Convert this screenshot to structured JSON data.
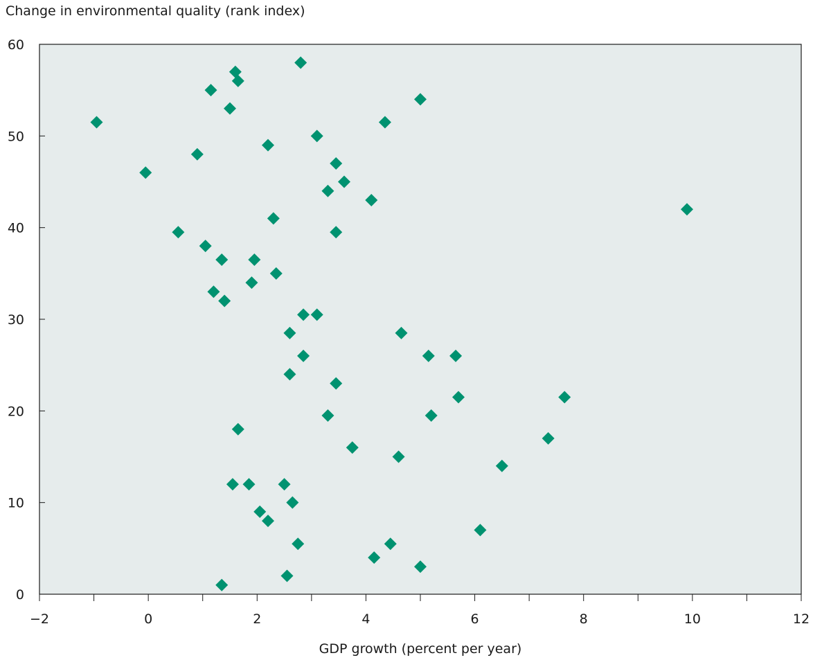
{
  "chart_data": {
    "type": "scatter",
    "title": "",
    "ylabel": "Change in environmental quality (rank index)",
    "xlabel": "GDP growth (percent per year)",
    "xlim": [
      -2,
      12
    ],
    "ylim": [
      0,
      60
    ],
    "x_ticks": [
      "−2",
      "0",
      "2",
      "4",
      "6",
      "8",
      "10",
      "12"
    ],
    "y_ticks": [
      "0",
      "10",
      "20",
      "30",
      "40",
      "50",
      "60"
    ],
    "grid": false,
    "colors": {
      "marker": "#009270",
      "plot_bg": "#e6ecec",
      "axis": "#1a1a1a"
    },
    "series": [
      {
        "points": [
          [
            -0.95,
            51.5
          ],
          [
            -0.05,
            46
          ],
          [
            0.55,
            39.5
          ],
          [
            0.9,
            48
          ],
          [
            1.05,
            38
          ],
          [
            1.15,
            55
          ],
          [
            1.2,
            33
          ],
          [
            1.35,
            36.5
          ],
          [
            1.4,
            32
          ],
          [
            1.5,
            53
          ],
          [
            1.55,
            12
          ],
          [
            1.6,
            57
          ],
          [
            1.65,
            56
          ],
          [
            1.65,
            18
          ],
          [
            1.35,
            1
          ],
          [
            1.85,
            12
          ],
          [
            1.9,
            34
          ],
          [
            1.95,
            36.5
          ],
          [
            2.05,
            9
          ],
          [
            2.2,
            49
          ],
          [
            2.2,
            8
          ],
          [
            2.3,
            41
          ],
          [
            2.35,
            35
          ],
          [
            2.5,
            12
          ],
          [
            2.55,
            2
          ],
          [
            2.6,
            28.5
          ],
          [
            2.6,
            24
          ],
          [
            2.65,
            10
          ],
          [
            2.75,
            5.5
          ],
          [
            2.8,
            58
          ],
          [
            2.85,
            30.5
          ],
          [
            2.85,
            26
          ],
          [
            3.1,
            50
          ],
          [
            3.1,
            30.5
          ],
          [
            3.3,
            44
          ],
          [
            3.3,
            19.5
          ],
          [
            3.45,
            47
          ],
          [
            3.45,
            39.5
          ],
          [
            3.45,
            23
          ],
          [
            3.6,
            45
          ],
          [
            3.75,
            16
          ],
          [
            4.1,
            43
          ],
          [
            4.15,
            4
          ],
          [
            4.35,
            51.5
          ],
          [
            4.45,
            5.5
          ],
          [
            4.6,
            15
          ],
          [
            4.65,
            28.5
          ],
          [
            5.0,
            54
          ],
          [
            5.0,
            3
          ],
          [
            5.15,
            26
          ],
          [
            5.2,
            19.5
          ],
          [
            5.65,
            26
          ],
          [
            5.7,
            21.5
          ],
          [
            6.1,
            7
          ],
          [
            6.5,
            14
          ],
          [
            7.35,
            17
          ],
          [
            7.65,
            21.5
          ],
          [
            9.9,
            42
          ]
        ]
      }
    ]
  }
}
